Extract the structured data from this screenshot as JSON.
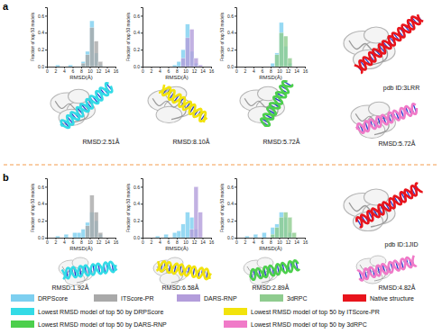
{
  "chart_data": [
    {
      "type": "histogram",
      "bins": [
        0,
        1,
        2,
        3,
        4,
        5,
        6,
        7,
        8,
        9,
        10,
        11,
        12,
        13,
        14,
        15,
        16
      ],
      "series": [
        {
          "name": "DRPScore",
          "color": "#7dcff0",
          "values": [
            0,
            0,
            0.02,
            0,
            0,
            0.02,
            0,
            0,
            0.06,
            0.18,
            0.54,
            0.16,
            0.02,
            0,
            0,
            0
          ]
        },
        {
          "name": "ITScore-PR",
          "color": "#a9a9a9",
          "values": [
            0,
            0,
            0,
            0,
            0,
            0,
            0,
            0,
            0.04,
            0.14,
            0.46,
            0.3,
            0.06,
            0,
            0,
            0
          ]
        }
      ],
      "xlim": [
        0,
        16
      ],
      "xticks": [
        0,
        2,
        4,
        6,
        8,
        10,
        12,
        14,
        16
      ],
      "ylim": [
        0,
        0.7
      ],
      "yticks": [
        {
          "value": 0,
          "label": "0.0"
        },
        0.2,
        0.4,
        0.6
      ],
      "x_label": "RMSD(Å)",
      "y_label": "Fraction of top 50 models"
    },
    {
      "type": "histogram",
      "bins": [
        0,
        1,
        2,
        3,
        4,
        5,
        6,
        7,
        8,
        9,
        10,
        11,
        12,
        13,
        14,
        15,
        16
      ],
      "series": [
        {
          "name": "DRPScore",
          "color": "#7dcff0",
          "values": [
            0,
            0,
            0,
            0,
            0,
            0,
            0,
            0.02,
            0.06,
            0.2,
            0.5,
            0.18,
            0.04,
            0,
            0,
            0
          ]
        },
        {
          "name": "DARS-RNP",
          "color": "#b39ddb",
          "values": [
            0,
            0,
            0,
            0,
            0,
            0,
            0,
            0,
            0,
            0.1,
            0.34,
            0.44,
            0.1,
            0.02,
            0,
            0
          ]
        }
      ],
      "xlim": [
        0,
        16
      ],
      "xticks": [
        0,
        2,
        4,
        6,
        8,
        10,
        12,
        14,
        16
      ],
      "ylim": [
        0,
        0.7
      ],
      "yticks": [
        {
          "value": 0,
          "label": "0.0"
        },
        0.2,
        0.4,
        0.6
      ],
      "x_label": "RMSD(Å)",
      "y_label": "Fraction of top 50 models"
    },
    {
      "type": "histogram",
      "bins": [
        0,
        1,
        2,
        3,
        4,
        5,
        6,
        7,
        8,
        9,
        10,
        11,
        12,
        13,
        14,
        15,
        16
      ],
      "series": [
        {
          "name": "DRPScore",
          "color": "#7dcff0",
          "values": [
            0,
            0,
            0,
            0,
            0,
            0,
            0,
            0,
            0.04,
            0.16,
            0.52,
            0.24,
            0.04,
            0,
            0,
            0
          ]
        },
        {
          "name": "3dRPC",
          "color": "#8fcc8f",
          "values": [
            0,
            0,
            0,
            0,
            0,
            0,
            0,
            0,
            0,
            0.14,
            0.4,
            0.36,
            0.1,
            0,
            0,
            0
          ]
        }
      ],
      "xlim": [
        0,
        16
      ],
      "xticks": [
        0,
        2,
        4,
        6,
        8,
        10,
        12,
        14,
        16
      ],
      "ylim": [
        0,
        0.7
      ],
      "yticks": [
        {
          "value": 0,
          "label": "0.0"
        },
        0.2,
        0.4,
        0.6
      ],
      "x_label": "RMSD(Å)",
      "y_label": "Fraction of top 50 models"
    },
    {
      "type": "histogram",
      "bins": [
        0,
        1,
        2,
        3,
        4,
        5,
        6,
        7,
        8,
        9,
        10,
        11,
        12,
        13,
        14,
        15,
        16
      ],
      "series": [
        {
          "name": "DRPScore",
          "color": "#7dcff0",
          "values": [
            0,
            0,
            0.02,
            0,
            0.04,
            0,
            0.06,
            0.06,
            0.1,
            0.18,
            0.3,
            0.2,
            0.04,
            0,
            0,
            0
          ]
        },
        {
          "name": "ITScore-PR",
          "color": "#a9a9a9",
          "values": [
            0,
            0,
            0,
            0,
            0,
            0,
            0,
            0,
            0,
            0.14,
            0.5,
            0.3,
            0.06,
            0,
            0,
            0
          ]
        }
      ],
      "xlim": [
        0,
        16
      ],
      "xticks": [
        0,
        2,
        4,
        6,
        8,
        10,
        12,
        14,
        16
      ],
      "ylim": [
        0,
        0.7
      ],
      "yticks": [
        {
          "value": 0,
          "label": "0.0"
        },
        0.2,
        0.4,
        0.6
      ],
      "x_label": "RMSD(Å)",
      "y_label": "Fraction of top 50 models"
    },
    {
      "type": "histogram",
      "bins": [
        0,
        1,
        2,
        3,
        4,
        5,
        6,
        7,
        8,
        9,
        10,
        11,
        12,
        13,
        14,
        15,
        16
      ],
      "series": [
        {
          "name": "DRPScore",
          "color": "#7dcff0",
          "values": [
            0,
            0,
            0,
            0.02,
            0,
            0.04,
            0,
            0.06,
            0.08,
            0.16,
            0.3,
            0.24,
            0.1,
            0,
            0,
            0
          ]
        },
        {
          "name": "DARS-RNP",
          "color": "#b39ddb",
          "values": [
            0,
            0,
            0,
            0,
            0,
            0,
            0,
            0,
            0,
            0,
            0,
            0.1,
            0.6,
            0.3,
            0,
            0
          ]
        }
      ],
      "xlim": [
        0,
        16
      ],
      "xticks": [
        0,
        2,
        4,
        6,
        8,
        10,
        12,
        14,
        16
      ],
      "ylim": [
        0,
        0.7
      ],
      "yticks": [
        {
          "value": 0,
          "label": "0.0"
        },
        0.2,
        0.4,
        0.6
      ],
      "x_label": "RMSD(Å)",
      "y_label": "Fraction of top 50 models"
    },
    {
      "type": "histogram",
      "bins": [
        0,
        1,
        2,
        3,
        4,
        5,
        6,
        7,
        8,
        9,
        10,
        11,
        12,
        13,
        14,
        15,
        16
      ],
      "series": [
        {
          "name": "DRPScore",
          "color": "#7dcff0",
          "values": [
            0,
            0,
            0.02,
            0,
            0.04,
            0,
            0.06,
            0,
            0.12,
            0.16,
            0.3,
            0.24,
            0.06,
            0,
            0,
            0
          ]
        },
        {
          "name": "3dRPC",
          "color": "#8fcc8f",
          "values": [
            0,
            0,
            0,
            0,
            0,
            0,
            0,
            0,
            0.04,
            0.12,
            0.24,
            0.3,
            0.24,
            0.06,
            0,
            0
          ]
        }
      ],
      "xlim": [
        0,
        16
      ],
      "xticks": [
        0,
        2,
        4,
        6,
        8,
        10,
        12,
        14,
        16
      ],
      "ylim": [
        0,
        0.7
      ],
      "yticks": [
        {
          "value": 0,
          "label": "0.0"
        },
        0.2,
        0.4,
        0.6
      ],
      "x_label": "RMSD(Å)",
      "y_label": "Fraction of top 50 models"
    }
  ],
  "figure": {
    "panels": [
      {
        "label": "a",
        "pdb_id": "pdb ID:3LRR",
        "models": [
          {
            "rmsd": "RMSD:2.51Å"
          },
          {
            "rmsd": "RMSD:8.10Å"
          },
          {
            "rmsd": "RMSD:5.72Å"
          },
          {
            "rmsd": "RMSD:5.72Å"
          }
        ]
      },
      {
        "label": "b",
        "pdb_id": "pdb ID:1JID",
        "models": [
          {
            "rmsd": "RMSD:1.92Å"
          },
          {
            "rmsd": "RMSD:6.58Å"
          },
          {
            "rmsd": "RMSD:2.89Å"
          },
          {
            "rmsd": "RMSD:4.82Å"
          }
        ]
      }
    ],
    "legend": [
      {
        "label": "Native structure",
        "color": "#e8141c"
      },
      {
        "label": "Lowest RMSD model of top 50 by DRPScore",
        "color": "#33dbe6"
      },
      {
        "label": "Lowest RMSD model of top 50 by ITScore-PR",
        "color": "#f2e30c"
      },
      {
        "label": "Lowest RMSD model of top 50 by DARS-RNP",
        "color": "#4ccf4c"
      },
      {
        "label": "Lowest RMSD model of top 50 by 3dRPC",
        "color": "#f07ac8"
      }
    ]
  }
}
